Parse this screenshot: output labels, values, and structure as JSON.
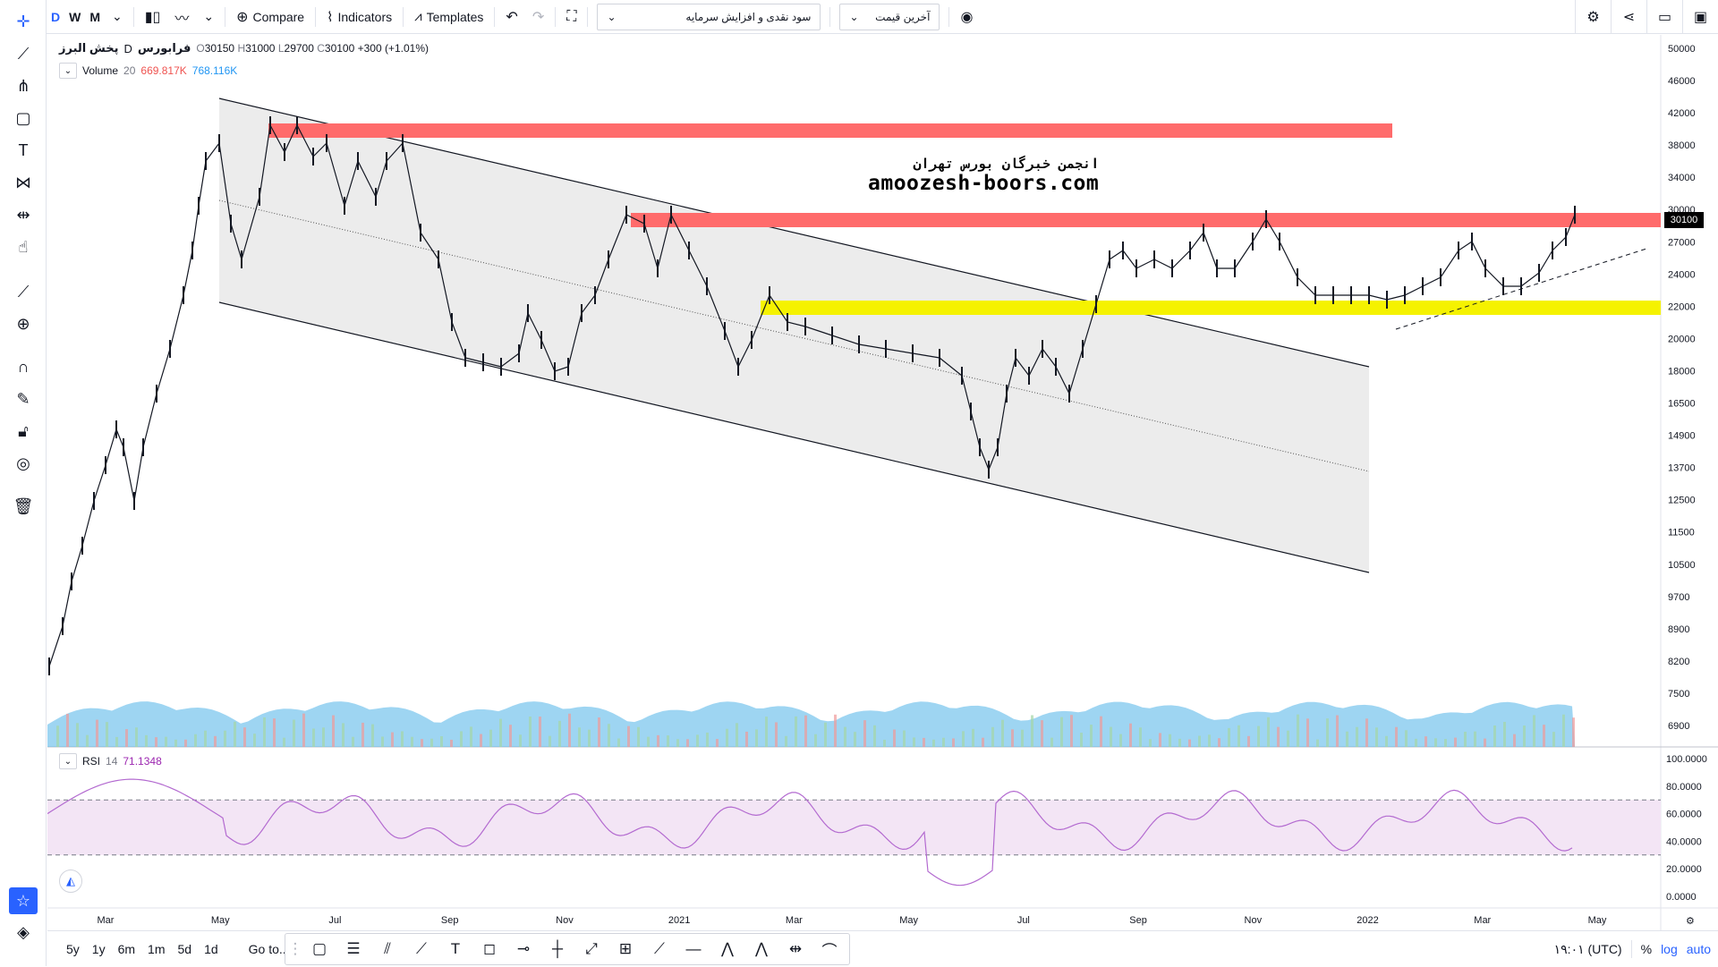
{
  "toolbar": {
    "intervals": [
      "D",
      "W",
      "M"
    ],
    "compare_label": "Compare",
    "indicators_label": "Indicators",
    "templates_label": "Templates",
    "select1_value": "سود نقدی و افزایش سرمایه",
    "select2_value": "آخرین قیمت"
  },
  "legend": {
    "symbol": "پخش البرز",
    "interval": "D",
    "exchange": "فرابورس",
    "open_label": "O",
    "open": "30150",
    "high_label": "H",
    "high": "31000",
    "low_label": "L",
    "low": "29700",
    "close_label": "C",
    "close": "30100",
    "change": "+300 (+1.01%)"
  },
  "volume_legend": {
    "name": "Volume",
    "period": "20",
    "v1": "669.817K",
    "v2": "768.116K"
  },
  "rsi_legend": {
    "name": "RSI",
    "period": "14",
    "value": "71.1348"
  },
  "watermark": {
    "fa": "انجمن خبرگان بورس تهران",
    "en": "amoozesh-boors.com"
  },
  "last_price_tag": "30100",
  "price_axis": [
    "50000",
    "46000",
    "42000",
    "38000",
    "34000",
    "30000",
    "27000",
    "24000",
    "22000",
    "20000",
    "18000",
    "16500",
    "14900",
    "13700",
    "12500",
    "11500",
    "10500",
    "9700",
    "8900",
    "8200",
    "7500",
    "6900"
  ],
  "rsi_axis": [
    "100.0000",
    "80.0000",
    "60.0000",
    "40.0000",
    "20.0000",
    "0.0000"
  ],
  "time_axis": [
    "Mar",
    "May",
    "Jul",
    "Sep",
    "Nov",
    "2021",
    "Mar",
    "May",
    "Jul",
    "Sep",
    "Nov",
    "2022",
    "Mar",
    "May"
  ],
  "bottombar": {
    "ranges": [
      "5y",
      "1y",
      "6m",
      "1m",
      "5d",
      "1d"
    ],
    "goto_label": "Go to...",
    "time": "۱۹:۰۱ (UTC)",
    "percent": "%",
    "log": "log",
    "auto": "auto"
  },
  "colors": {
    "resistance_zone": "#ff6b6b",
    "support_zone": "#f5f200",
    "channel_fill": "#ececec",
    "rsi_line": "#b36ad0",
    "rsi_band": "#f3e5f5",
    "volume_area": "#4fb3e8",
    "accent": "#2962ff"
  },
  "icons": {
    "left": [
      "crosshair-icon",
      "trend-line-icon",
      "pitchfork-icon",
      "rectangle-icon",
      "text-icon",
      "pattern-icon",
      "prediction-icon",
      "emoji-icon",
      "ruler-icon",
      "zoom-icon",
      "magnet-icon",
      "lock-drawing-icon",
      "lock-icon",
      "eye-icon",
      "trash-icon"
    ]
  }
}
